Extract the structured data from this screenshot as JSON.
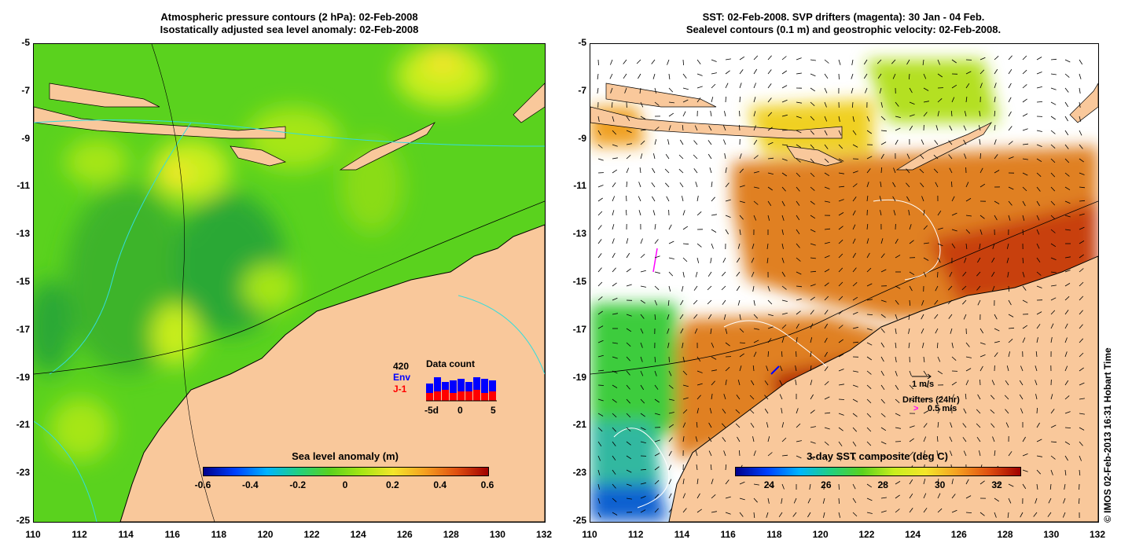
{
  "left_panel": {
    "title_line1": "Atmospheric pressure contours (2 hPa): 02-Feb-2008",
    "title_line2": "Isostatically adjusted sea level anomaly: 02-Feb-2008",
    "colorbar": {
      "title": "Sea level anomaly (m)",
      "ticks": [
        "-0.6",
        "-0.4",
        "-0.2",
        "0",
        "0.2",
        "0.4",
        "0.6"
      ],
      "range": [
        -0.6,
        0.6
      ]
    },
    "data_count": {
      "label": "Data count",
      "total": "420",
      "env_label": "Env",
      "j1_label": "J-1",
      "axis_ticks": [
        "-5d",
        "0",
        "5"
      ],
      "env_color": "#0000ff",
      "j1_color": "#ff0000",
      "bars_env": [
        0.55,
        0.75,
        0.6,
        0.65,
        0.7,
        0.6,
        0.75,
        0.7,
        0.65
      ],
      "bars_j1": [
        0.25,
        0.3,
        0.35,
        0.25,
        0.3,
        0.3,
        0.35,
        0.25,
        0.3
      ]
    }
  },
  "right_panel": {
    "title_line1": "SST: 02-Feb-2008. SVP drifters (magenta): 30 Jan - 04 Feb.",
    "title_line2": "Sealevel contours (0.1 m) and geostrophic velocity: 02-Feb-2008.",
    "colorbar": {
      "title": "3-day SST composite (deg C)",
      "ticks": [
        "24",
        "26",
        "28",
        "30",
        "32"
      ],
      "range": [
        22.8,
        32.8
      ]
    },
    "velocity_legend": "1 m/s",
    "drifter_legend_title": "Drifters (24hr)",
    "drifter_legend_value": "0.5 m/s",
    "drifter_color": "#ff00ff"
  },
  "axes": {
    "lat_ticks": [
      "-5",
      "-7",
      "-9",
      "-11",
      "-13",
      "-15",
      "-17",
      "-19",
      "-21",
      "-23",
      "-25"
    ],
    "lon_ticks": [
      "110",
      "112",
      "114",
      "116",
      "118",
      "120",
      "122",
      "124",
      "126",
      "128",
      "130",
      "132"
    ]
  },
  "copyright": "© IMOS 02-Feb-2013 16:31 Hobart Time",
  "colors": {
    "land": "#f9c89b",
    "ocean_green": "#5ad21e",
    "sst_warm": "#d45a0a",
    "sst_hot": "#a82000",
    "contour_cyan": "#33dddd"
  }
}
